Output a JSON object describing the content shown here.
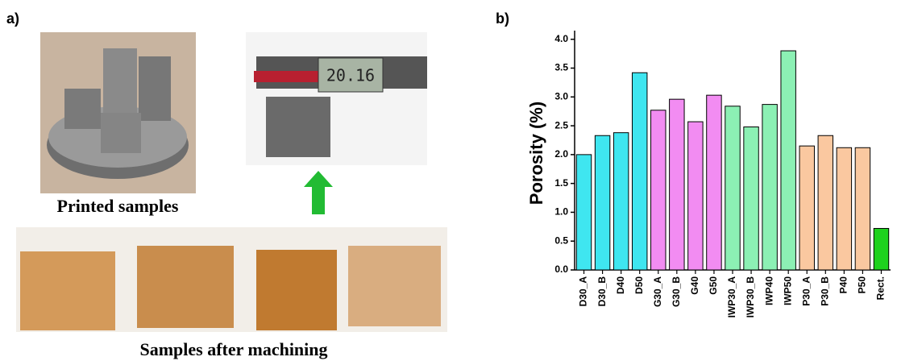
{
  "panel_a": {
    "label": "a)",
    "caption_top": "Printed samples",
    "caption_bottom": "Samples after machining",
    "caliper_reading": "20.16"
  },
  "chart_data": {
    "type": "bar",
    "panel_label": "b)",
    "y_label": "Porosity (%)",
    "categories": [
      "D30_A",
      "D30_B",
      "D40",
      "D50",
      "G30_A",
      "G30_B",
      "G40",
      "G50",
      "IWP30_A",
      "IWP30_B",
      "IWP40",
      "IWP50",
      "P30_A",
      "P30_B",
      "P40",
      "P50",
      "Rect."
    ],
    "values": [
      2.0,
      2.33,
      2.38,
      3.42,
      2.77,
      2.96,
      2.57,
      3.03,
      2.84,
      2.48,
      2.87,
      3.8,
      2.15,
      2.33,
      2.12,
      2.12,
      0.72
    ],
    "colors": [
      "#3fe6f0",
      "#3fe6f0",
      "#3fe6f0",
      "#3fe6f0",
      "#f28cf2",
      "#f28cf2",
      "#f28cf2",
      "#f28cf2",
      "#8cf0b4",
      "#8cf0b4",
      "#8cf0b4",
      "#8cf0b4",
      "#fac8a0",
      "#fac8a0",
      "#fac8a0",
      "#fac8a0",
      "#1ed21e"
    ],
    "ylim": [
      0,
      4.15
    ],
    "yticks": [
      {
        "value": 0,
        "label": "0.0"
      },
      {
        "value": 0.5,
        "label": "0.5"
      },
      {
        "value": 1,
        "label": "1.0"
      },
      {
        "value": 1.5,
        "label": "1.5"
      },
      {
        "value": 2,
        "label": "2.0"
      },
      {
        "value": 2.5,
        "label": "2.5"
      },
      {
        "value": 3,
        "label": "3.0"
      },
      {
        "value": 3.5,
        "label": "3.5"
      },
      {
        "value": 4,
        "label": "4.0"
      }
    ]
  }
}
